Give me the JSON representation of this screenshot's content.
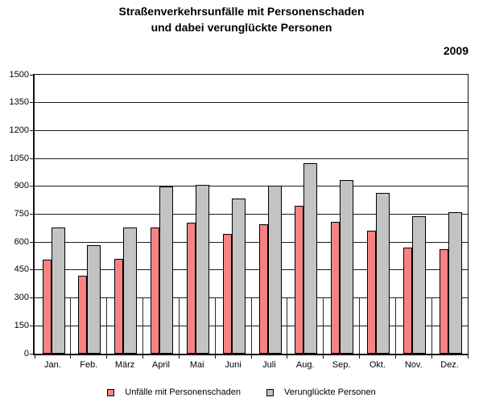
{
  "title": {
    "line1": "Straßenverkehrsunfälle mit Personenschaden",
    "line2": "und dabei verunglückte Personen"
  },
  "year_label": "2009",
  "chart_data": {
    "type": "bar",
    "title": "Straßenverkehrsunfälle mit Personenschaden und dabei verunglückte Personen",
    "subtitle_year": "2009",
    "categories": [
      "Jan.",
      "Feb.",
      "März",
      "April",
      "Mai",
      "Juni",
      "Juli",
      "Aug.",
      "Sep.",
      "Okt.",
      "Nov.",
      "Dez."
    ],
    "series": [
      {
        "name": "Unfälle mit Personenschaden",
        "color": "#f78282",
        "values": [
          505,
          420,
          510,
          680,
          705,
          645,
          695,
          795,
          710,
          660,
          570,
          560
        ]
      },
      {
        "name": "Verunglückte Personen",
        "color": "#c3c3c3",
        "values": [
          680,
          585,
          680,
          900,
          910,
          835,
          905,
          1025,
          935,
          865,
          740,
          760
        ]
      }
    ],
    "xlabel": "",
    "ylabel": "",
    "ylim": [
      0,
      1500
    ],
    "yticks": [
      0,
      150,
      300,
      450,
      600,
      750,
      900,
      1050,
      1200,
      1350,
      1500
    ],
    "grid": true,
    "gridcolor": "#1c1c1c",
    "legend_position": "bottom",
    "bar_border_color": "#000000",
    "background": "#ffffff"
  }
}
